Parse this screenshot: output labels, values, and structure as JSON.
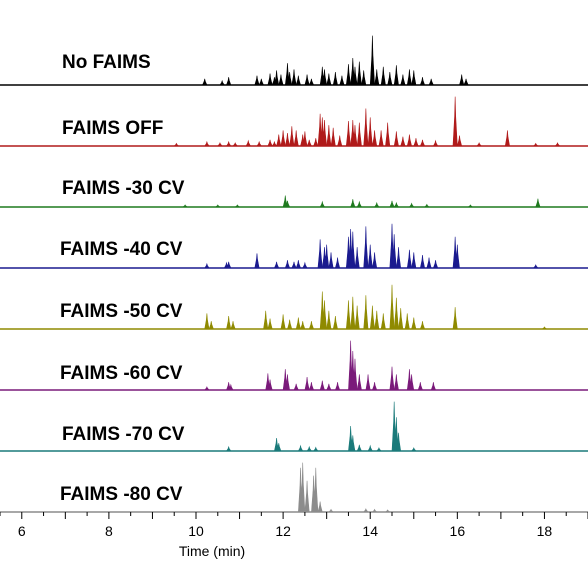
{
  "chart_data": {
    "type": "line",
    "title": "",
    "xlabel": "Time (min)",
    "ylabel": "",
    "xlim": [
      5.5,
      19.0
    ],
    "x_ticks": [
      6,
      8,
      10,
      12,
      14,
      16,
      18
    ],
    "grid": false,
    "legend": "none",
    "series": [
      {
        "name": "No FAIMS",
        "color": "#000000",
        "peaks": [
          [
            10.2,
            0.12
          ],
          [
            10.6,
            0.08
          ],
          [
            10.75,
            0.15
          ],
          [
            11.4,
            0.18
          ],
          [
            11.5,
            0.12
          ],
          [
            11.7,
            0.22
          ],
          [
            11.8,
            0.15
          ],
          [
            11.85,
            0.28
          ],
          [
            11.95,
            0.2
          ],
          [
            12.1,
            0.42
          ],
          [
            12.15,
            0.25
          ],
          [
            12.25,
            0.3
          ],
          [
            12.35,
            0.18
          ],
          [
            12.55,
            0.2
          ],
          [
            12.65,
            0.12
          ],
          [
            12.9,
            0.35
          ],
          [
            12.95,
            0.3
          ],
          [
            13.05,
            0.22
          ],
          [
            13.2,
            0.25
          ],
          [
            13.35,
            0.18
          ],
          [
            13.5,
            0.4
          ],
          [
            13.6,
            0.52
          ],
          [
            13.65,
            0.35
          ],
          [
            13.75,
            0.45
          ],
          [
            13.85,
            0.28
          ],
          [
            14.05,
            0.95
          ],
          [
            14.15,
            0.3
          ],
          [
            14.3,
            0.35
          ],
          [
            14.45,
            0.25
          ],
          [
            14.6,
            0.38
          ],
          [
            14.75,
            0.2
          ],
          [
            14.9,
            0.3
          ],
          [
            15.0,
            0.28
          ],
          [
            15.2,
            0.15
          ],
          [
            15.4,
            0.12
          ],
          [
            16.1,
            0.2
          ],
          [
            16.2,
            0.12
          ]
        ]
      },
      {
        "name": "FAIMS OFF",
        "color": "#b01a1a",
        "peaks": [
          [
            9.55,
            0.05
          ],
          [
            10.25,
            0.08
          ],
          [
            10.55,
            0.06
          ],
          [
            10.75,
            0.08
          ],
          [
            10.9,
            0.06
          ],
          [
            11.2,
            0.1
          ],
          [
            11.45,
            0.08
          ],
          [
            11.7,
            0.12
          ],
          [
            11.8,
            0.08
          ],
          [
            11.9,
            0.22
          ],
          [
            12.0,
            0.3
          ],
          [
            12.1,
            0.25
          ],
          [
            12.2,
            0.38
          ],
          [
            12.3,
            0.3
          ],
          [
            12.45,
            0.22
          ],
          [
            12.5,
            0.28
          ],
          [
            12.6,
            0.12
          ],
          [
            12.75,
            0.15
          ],
          [
            12.85,
            0.62
          ],
          [
            12.9,
            0.55
          ],
          [
            12.95,
            0.5
          ],
          [
            13.05,
            0.4
          ],
          [
            13.15,
            0.35
          ],
          [
            13.3,
            0.2
          ],
          [
            13.5,
            0.48
          ],
          [
            13.6,
            0.5
          ],
          [
            13.65,
            0.4
          ],
          [
            13.75,
            0.45
          ],
          [
            13.9,
            0.72
          ],
          [
            14.0,
            0.55
          ],
          [
            14.1,
            0.3
          ],
          [
            14.25,
            0.3
          ],
          [
            14.4,
            0.45
          ],
          [
            14.6,
            0.28
          ],
          [
            14.75,
            0.18
          ],
          [
            14.9,
            0.22
          ],
          [
            15.05,
            0.15
          ],
          [
            15.2,
            0.12
          ],
          [
            15.5,
            0.1
          ],
          [
            15.95,
            0.95
          ],
          [
            16.05,
            0.2
          ],
          [
            16.5,
            0.06
          ],
          [
            17.15,
            0.3
          ],
          [
            17.8,
            0.05
          ],
          [
            18.3,
            0.06
          ]
        ]
      },
      {
        "name": "FAIMS -30 CV",
        "color": "#1f7a1f",
        "peaks": [
          [
            9.75,
            0.04
          ],
          [
            10.5,
            0.04
          ],
          [
            10.95,
            0.04
          ],
          [
            12.05,
            0.22
          ],
          [
            12.1,
            0.12
          ],
          [
            12.9,
            0.1
          ],
          [
            13.6,
            0.15
          ],
          [
            13.75,
            0.1
          ],
          [
            14.15,
            0.08
          ],
          [
            14.5,
            0.12
          ],
          [
            14.6,
            0.08
          ],
          [
            14.95,
            0.07
          ],
          [
            15.3,
            0.05
          ],
          [
            16.3,
            0.04
          ],
          [
            17.85,
            0.16
          ]
        ]
      },
      {
        "name": "FAIMS -40 CV",
        "color": "#1a1a8f",
        "peaks": [
          [
            10.25,
            0.08
          ],
          [
            10.7,
            0.1
          ],
          [
            10.75,
            0.12
          ],
          [
            11.4,
            0.28
          ],
          [
            11.85,
            0.12
          ],
          [
            12.1,
            0.15
          ],
          [
            12.25,
            0.12
          ],
          [
            12.35,
            0.15
          ],
          [
            12.5,
            0.1
          ],
          [
            12.85,
            0.55
          ],
          [
            12.95,
            0.4
          ],
          [
            13.0,
            0.45
          ],
          [
            13.1,
            0.3
          ],
          [
            13.25,
            0.2
          ],
          [
            13.5,
            0.6
          ],
          [
            13.55,
            0.75
          ],
          [
            13.6,
            0.7
          ],
          [
            13.7,
            0.4
          ],
          [
            13.9,
            0.8
          ],
          [
            14.0,
            0.45
          ],
          [
            14.1,
            0.3
          ],
          [
            14.5,
            0.85
          ],
          [
            14.55,
            0.65
          ],
          [
            14.65,
            0.4
          ],
          [
            14.9,
            0.35
          ],
          [
            15.0,
            0.3
          ],
          [
            15.2,
            0.25
          ],
          [
            15.35,
            0.2
          ],
          [
            15.5,
            0.15
          ],
          [
            15.95,
            0.6
          ],
          [
            16.0,
            0.45
          ],
          [
            17.8,
            0.06
          ]
        ]
      },
      {
        "name": "FAIMS -50 CV",
        "color": "#8f8a00",
        "peaks": [
          [
            10.25,
            0.3
          ],
          [
            10.35,
            0.15
          ],
          [
            10.75,
            0.25
          ],
          [
            10.85,
            0.15
          ],
          [
            11.6,
            0.35
          ],
          [
            11.7,
            0.2
          ],
          [
            12.0,
            0.28
          ],
          [
            12.15,
            0.18
          ],
          [
            12.35,
            0.22
          ],
          [
            12.45,
            0.15
          ],
          [
            12.65,
            0.15
          ],
          [
            12.9,
            0.72
          ],
          [
            12.95,
            0.55
          ],
          [
            13.05,
            0.35
          ],
          [
            13.2,
            0.25
          ],
          [
            13.5,
            0.55
          ],
          [
            13.6,
            0.62
          ],
          [
            13.7,
            0.45
          ],
          [
            13.9,
            0.65
          ],
          [
            14.05,
            0.45
          ],
          [
            14.15,
            0.35
          ],
          [
            14.3,
            0.3
          ],
          [
            14.5,
            0.85
          ],
          [
            14.6,
            0.6
          ],
          [
            14.7,
            0.4
          ],
          [
            14.85,
            0.3
          ],
          [
            15.0,
            0.22
          ],
          [
            15.2,
            0.15
          ],
          [
            15.95,
            0.42
          ],
          [
            18.0,
            0.04
          ]
        ]
      },
      {
        "name": "FAIMS -60 CV",
        "color": "#7a1a7a",
        "peaks": [
          [
            10.25,
            0.06
          ],
          [
            10.75,
            0.15
          ],
          [
            10.8,
            0.1
          ],
          [
            11.65,
            0.32
          ],
          [
            11.7,
            0.2
          ],
          [
            12.05,
            0.4
          ],
          [
            12.1,
            0.3
          ],
          [
            12.3,
            0.12
          ],
          [
            12.55,
            0.25
          ],
          [
            12.65,
            0.15
          ],
          [
            12.9,
            0.18
          ],
          [
            13.05,
            0.12
          ],
          [
            13.25,
            0.15
          ],
          [
            13.55,
            0.95
          ],
          [
            13.6,
            0.75
          ],
          [
            13.65,
            0.6
          ],
          [
            13.75,
            0.3
          ],
          [
            13.95,
            0.3
          ],
          [
            14.1,
            0.15
          ],
          [
            14.5,
            0.45
          ],
          [
            14.6,
            0.3
          ],
          [
            14.9,
            0.4
          ],
          [
            14.95,
            0.3
          ],
          [
            15.15,
            0.15
          ],
          [
            15.45,
            0.15
          ]
        ]
      },
      {
        "name": "FAIMS -70 CV",
        "color": "#1a7a7a",
        "peaks": [
          [
            10.75,
            0.08
          ],
          [
            11.85,
            0.25
          ],
          [
            11.9,
            0.15
          ],
          [
            12.4,
            0.1
          ],
          [
            12.6,
            0.08
          ],
          [
            12.75,
            0.07
          ],
          [
            13.55,
            0.48
          ],
          [
            13.6,
            0.3
          ],
          [
            13.75,
            0.12
          ],
          [
            14.0,
            0.1
          ],
          [
            14.2,
            0.06
          ],
          [
            14.55,
            0.95
          ],
          [
            14.6,
            0.65
          ],
          [
            14.65,
            0.35
          ],
          [
            15.0,
            0.06
          ]
        ]
      },
      {
        "name": "FAIMS -80 CV",
        "color": "#8c8c8c",
        "peaks": [
          [
            12.4,
            0.85
          ],
          [
            12.45,
            0.95
          ],
          [
            12.55,
            0.6
          ],
          [
            12.7,
            0.7
          ],
          [
            12.75,
            0.85
          ],
          [
            12.85,
            0.2
          ],
          [
            13.1,
            0.05
          ],
          [
            13.9,
            0.06
          ],
          [
            14.1,
            0.05
          ],
          [
            14.4,
            0.04
          ]
        ]
      }
    ]
  }
}
